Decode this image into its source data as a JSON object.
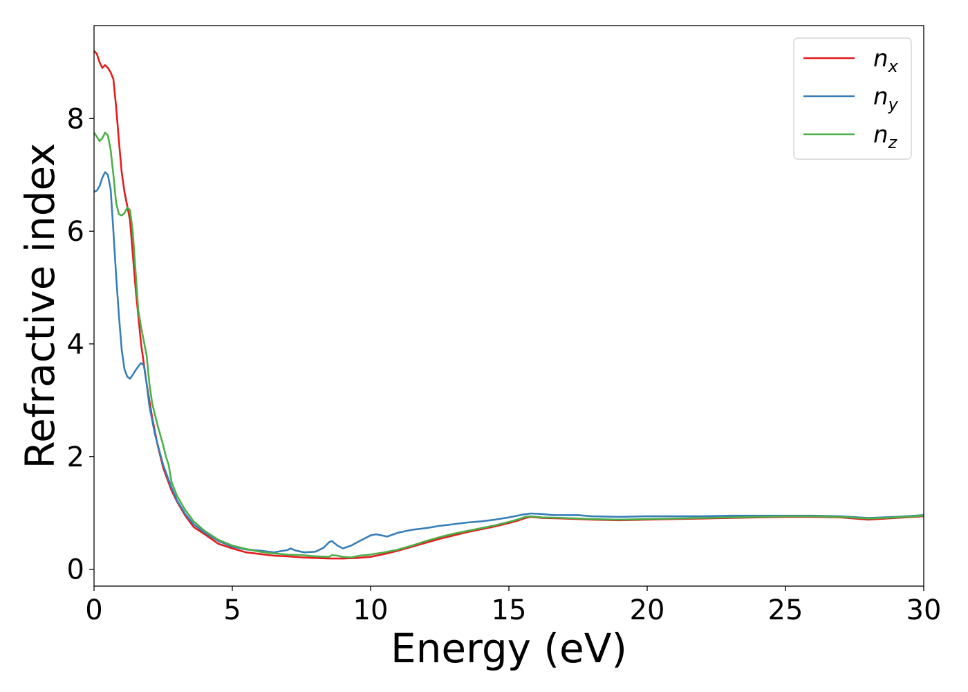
{
  "chart_data": {
    "type": "line",
    "xlabel": "Energy (eV)",
    "ylabel": "Refractive index",
    "xlim": [
      0,
      30
    ],
    "ylim": [
      -0.3,
      9.65
    ],
    "x_ticks": [
      "0",
      "5",
      "10",
      "15",
      "20",
      "25",
      "30"
    ],
    "y_ticks": [
      "0",
      "2",
      "4",
      "6",
      "8"
    ],
    "grid": false,
    "legend_position": "top-right",
    "series": [
      {
        "name": "n",
        "subscript": "x",
        "color": "#e41a1c",
        "points": [
          [
            0,
            9.2
          ],
          [
            0.1,
            9.15
          ],
          [
            0.2,
            9.0
          ],
          [
            0.3,
            8.9
          ],
          [
            0.4,
            8.95
          ],
          [
            0.5,
            8.9
          ],
          [
            0.6,
            8.82
          ],
          [
            0.7,
            8.7
          ],
          [
            0.8,
            8.2
          ],
          [
            0.9,
            7.6
          ],
          [
            1.0,
            7.05
          ],
          [
            1.1,
            6.7
          ],
          [
            1.2,
            6.45
          ],
          [
            1.3,
            6.2
          ],
          [
            1.5,
            5.0
          ],
          [
            1.7,
            4.0
          ],
          [
            1.9,
            3.3
          ],
          [
            2.1,
            2.7
          ],
          [
            2.3,
            2.2
          ],
          [
            2.5,
            1.8
          ],
          [
            2.8,
            1.4
          ],
          [
            3.0,
            1.2
          ],
          [
            3.3,
            0.95
          ],
          [
            3.6,
            0.75
          ],
          [
            4.0,
            0.62
          ],
          [
            4.5,
            0.45
          ],
          [
            5.0,
            0.37
          ],
          [
            5.5,
            0.3
          ],
          [
            6.0,
            0.27
          ],
          [
            6.5,
            0.24
          ],
          [
            7.0,
            0.23
          ],
          [
            7.5,
            0.21
          ],
          [
            8.0,
            0.2
          ],
          [
            8.5,
            0.19
          ],
          [
            9.0,
            0.19
          ],
          [
            9.5,
            0.2
          ],
          [
            10.0,
            0.22
          ],
          [
            10.5,
            0.27
          ],
          [
            11.0,
            0.33
          ],
          [
            11.5,
            0.4
          ],
          [
            12.0,
            0.47
          ],
          [
            12.5,
            0.54
          ],
          [
            13.0,
            0.6
          ],
          [
            13.5,
            0.66
          ],
          [
            14.0,
            0.71
          ],
          [
            14.5,
            0.76
          ],
          [
            15.0,
            0.82
          ],
          [
            15.3,
            0.86
          ],
          [
            15.6,
            0.91
          ],
          [
            15.8,
            0.93
          ],
          [
            16.2,
            0.91
          ],
          [
            17.0,
            0.9
          ],
          [
            18.0,
            0.88
          ],
          [
            19.0,
            0.87
          ],
          [
            20.0,
            0.88
          ],
          [
            21.0,
            0.89
          ],
          [
            22.0,
            0.9
          ],
          [
            23.0,
            0.91
          ],
          [
            24.0,
            0.92
          ],
          [
            25.0,
            0.93
          ],
          [
            26.0,
            0.93
          ],
          [
            27.0,
            0.92
          ],
          [
            28.0,
            0.88
          ],
          [
            29.0,
            0.91
          ],
          [
            30.0,
            0.94
          ]
        ]
      },
      {
        "name": "n",
        "subscript": "y",
        "color": "#377eb8",
        "points": [
          [
            0,
            6.7
          ],
          [
            0.1,
            6.72
          ],
          [
            0.2,
            6.8
          ],
          [
            0.3,
            6.95
          ],
          [
            0.4,
            7.05
          ],
          [
            0.5,
            7.0
          ],
          [
            0.6,
            6.75
          ],
          [
            0.7,
            6.0
          ],
          [
            0.8,
            5.2
          ],
          [
            0.9,
            4.5
          ],
          [
            1.0,
            3.9
          ],
          [
            1.1,
            3.55
          ],
          [
            1.2,
            3.42
          ],
          [
            1.3,
            3.38
          ],
          [
            1.4,
            3.45
          ],
          [
            1.5,
            3.53
          ],
          [
            1.6,
            3.6
          ],
          [
            1.7,
            3.66
          ],
          [
            1.8,
            3.62
          ],
          [
            1.9,
            3.3
          ],
          [
            2.0,
            2.9
          ],
          [
            2.2,
            2.4
          ],
          [
            2.5,
            1.85
          ],
          [
            2.8,
            1.45
          ],
          [
            3.0,
            1.22
          ],
          [
            3.3,
            0.98
          ],
          [
            3.6,
            0.8
          ],
          [
            4.0,
            0.65
          ],
          [
            4.5,
            0.5
          ],
          [
            5.0,
            0.4
          ],
          [
            5.5,
            0.35
          ],
          [
            6.0,
            0.33
          ],
          [
            6.5,
            0.3
          ],
          [
            7.0,
            0.34
          ],
          [
            7.1,
            0.37
          ],
          [
            7.3,
            0.33
          ],
          [
            7.6,
            0.3
          ],
          [
            8.0,
            0.31
          ],
          [
            8.3,
            0.38
          ],
          [
            8.5,
            0.48
          ],
          [
            8.6,
            0.5
          ],
          [
            8.8,
            0.42
          ],
          [
            9.0,
            0.37
          ],
          [
            9.3,
            0.42
          ],
          [
            9.6,
            0.5
          ],
          [
            10.0,
            0.6
          ],
          [
            10.2,
            0.62
          ],
          [
            10.4,
            0.6
          ],
          [
            10.6,
            0.58
          ],
          [
            11.0,
            0.65
          ],
          [
            11.5,
            0.7
          ],
          [
            12.0,
            0.73
          ],
          [
            12.5,
            0.77
          ],
          [
            13.0,
            0.8
          ],
          [
            13.5,
            0.83
          ],
          [
            14.0,
            0.85
          ],
          [
            14.5,
            0.88
          ],
          [
            15.0,
            0.92
          ],
          [
            15.5,
            0.97
          ],
          [
            15.8,
            0.99
          ],
          [
            16.2,
            0.98
          ],
          [
            16.6,
            0.96
          ],
          [
            17.0,
            0.96
          ],
          [
            17.5,
            0.96
          ],
          [
            18.0,
            0.94
          ],
          [
            19.0,
            0.93
          ],
          [
            20.0,
            0.94
          ],
          [
            21.0,
            0.94
          ],
          [
            22.0,
            0.94
          ],
          [
            23.0,
            0.95
          ],
          [
            24.0,
            0.95
          ],
          [
            25.0,
            0.95
          ],
          [
            26.0,
            0.95
          ],
          [
            27.0,
            0.94
          ],
          [
            28.0,
            0.91
          ],
          [
            29.0,
            0.93
          ],
          [
            30.0,
            0.96
          ]
        ]
      },
      {
        "name": "n",
        "subscript": "z",
        "color": "#4daf4a",
        "points": [
          [
            0,
            7.75
          ],
          [
            0.1,
            7.68
          ],
          [
            0.2,
            7.6
          ],
          [
            0.3,
            7.65
          ],
          [
            0.4,
            7.75
          ],
          [
            0.5,
            7.7
          ],
          [
            0.6,
            7.45
          ],
          [
            0.7,
            7.0
          ],
          [
            0.8,
            6.5
          ],
          [
            0.9,
            6.3
          ],
          [
            1.0,
            6.28
          ],
          [
            1.1,
            6.32
          ],
          [
            1.2,
            6.42
          ],
          [
            1.3,
            6.38
          ],
          [
            1.4,
            6.0
          ],
          [
            1.5,
            5.3
          ],
          [
            1.6,
            4.6
          ],
          [
            1.7,
            4.3
          ],
          [
            1.8,
            4.05
          ],
          [
            1.9,
            3.8
          ],
          [
            2.0,
            3.3
          ],
          [
            2.1,
            2.95
          ],
          [
            2.2,
            2.75
          ],
          [
            2.3,
            2.55
          ],
          [
            2.5,
            2.2
          ],
          [
            2.6,
            2.0
          ],
          [
            2.7,
            1.85
          ],
          [
            2.8,
            1.55
          ],
          [
            3.0,
            1.3
          ],
          [
            3.3,
            1.05
          ],
          [
            3.6,
            0.85
          ],
          [
            4.0,
            0.68
          ],
          [
            4.5,
            0.52
          ],
          [
            5.0,
            0.42
          ],
          [
            5.5,
            0.36
          ],
          [
            6.0,
            0.31
          ],
          [
            6.5,
            0.28
          ],
          [
            7.0,
            0.26
          ],
          [
            7.5,
            0.25
          ],
          [
            8.0,
            0.23
          ],
          [
            8.5,
            0.22
          ],
          [
            8.6,
            0.25
          ],
          [
            8.8,
            0.24
          ],
          [
            9.0,
            0.22
          ],
          [
            9.3,
            0.21
          ],
          [
            9.6,
            0.24
          ],
          [
            10.0,
            0.26
          ],
          [
            10.5,
            0.3
          ],
          [
            11.0,
            0.35
          ],
          [
            11.5,
            0.42
          ],
          [
            12.0,
            0.5
          ],
          [
            12.5,
            0.57
          ],
          [
            13.0,
            0.63
          ],
          [
            13.5,
            0.68
          ],
          [
            14.0,
            0.73
          ],
          [
            14.5,
            0.78
          ],
          [
            15.0,
            0.84
          ],
          [
            15.3,
            0.88
          ],
          [
            15.6,
            0.93
          ],
          [
            15.8,
            0.94
          ],
          [
            16.2,
            0.92
          ],
          [
            17.0,
            0.91
          ],
          [
            18.0,
            0.89
          ],
          [
            19.0,
            0.88
          ],
          [
            20.0,
            0.89
          ],
          [
            21.0,
            0.9
          ],
          [
            22.0,
            0.91
          ],
          [
            23.0,
            0.92
          ],
          [
            24.0,
            0.93
          ],
          [
            25.0,
            0.94
          ],
          [
            26.0,
            0.94
          ],
          [
            27.0,
            0.93
          ],
          [
            28.0,
            0.9
          ],
          [
            29.0,
            0.92
          ],
          [
            30.0,
            0.95
          ]
        ]
      }
    ]
  }
}
